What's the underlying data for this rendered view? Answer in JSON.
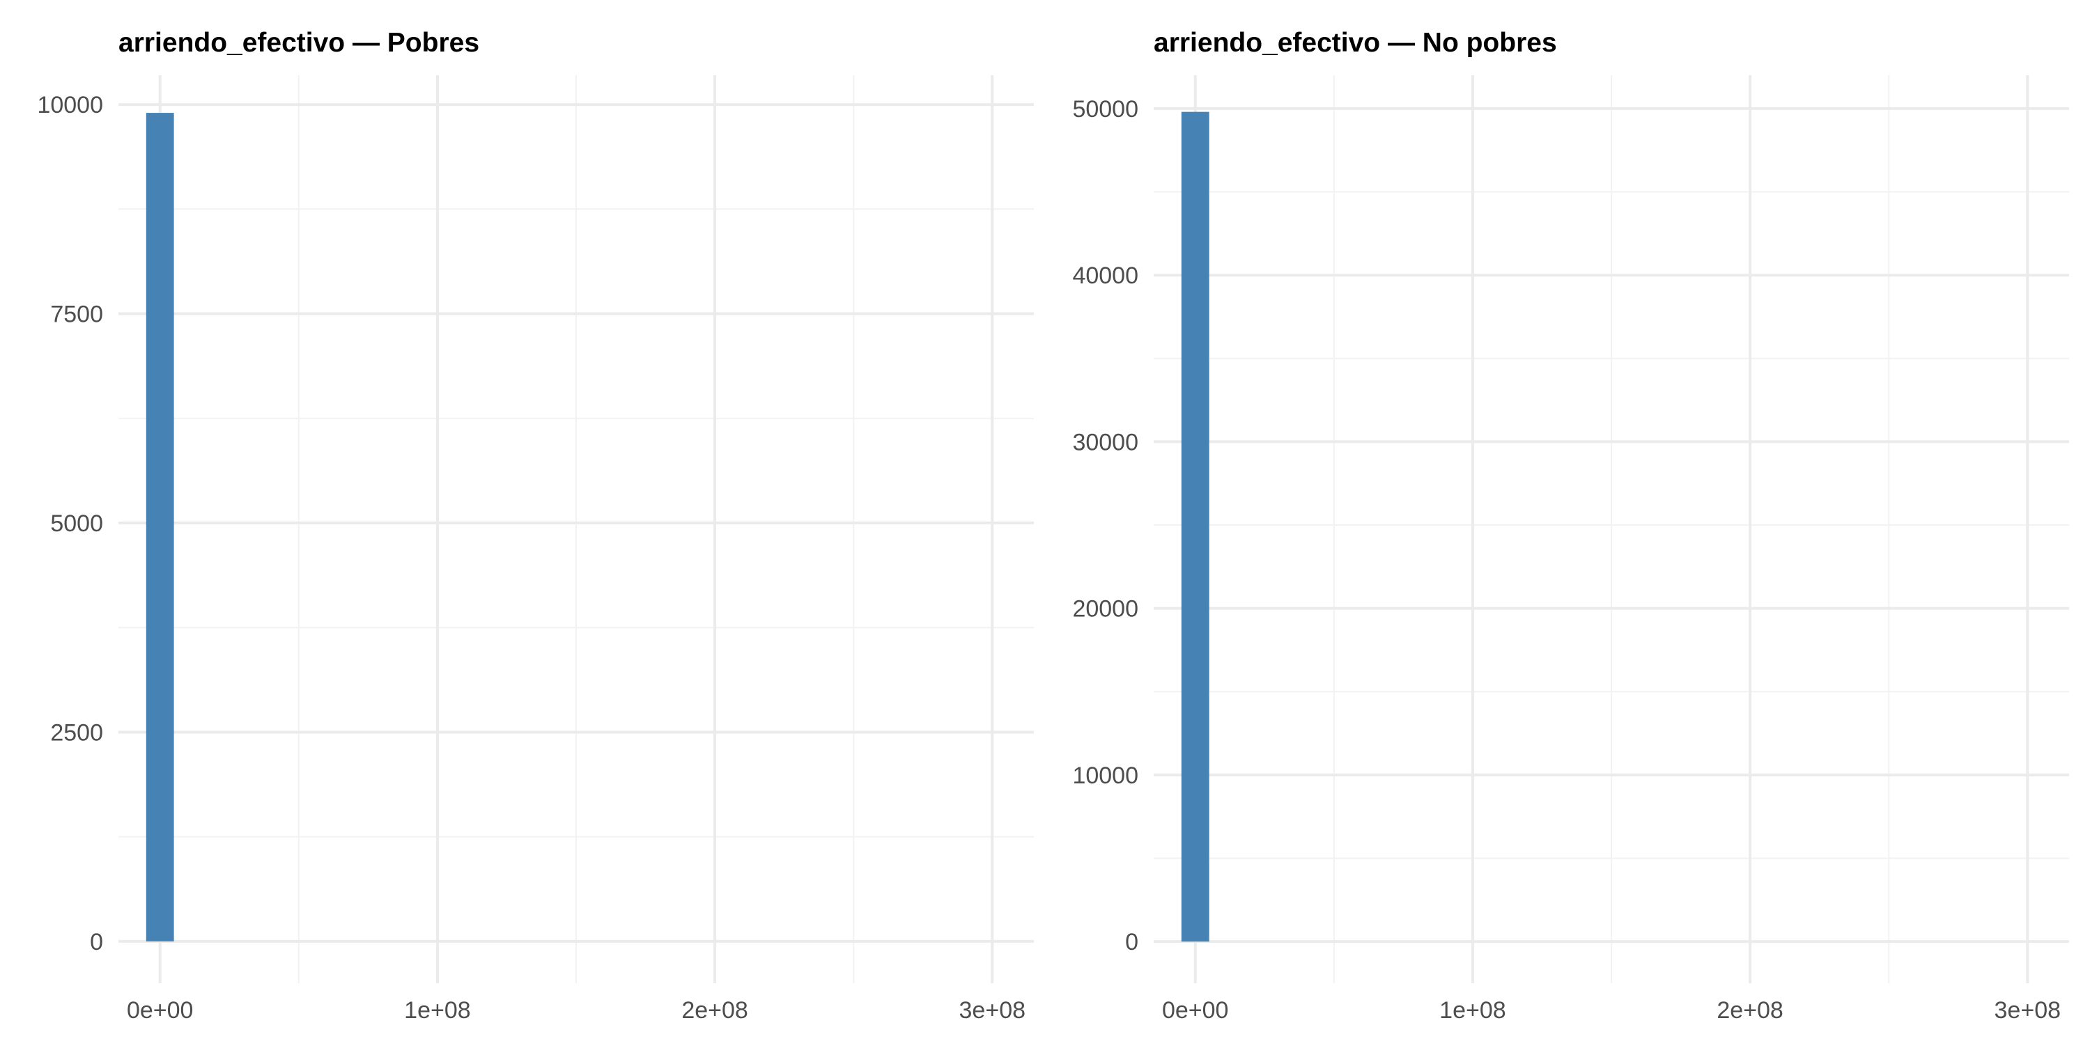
{
  "chart_data": [
    {
      "type": "bar",
      "title": "arriendo_efectivo — Pobres",
      "xlabel": "",
      "ylabel": "",
      "x_ticks": [
        {
          "value": 0,
          "label": "0e+00"
        },
        {
          "value": 100000000,
          "label": "1e+08"
        },
        {
          "value": 200000000,
          "label": "2e+08"
        },
        {
          "value": 300000000,
          "label": "3e+08"
        }
      ],
      "y_ticks": [
        {
          "value": 0,
          "label": "0"
        },
        {
          "value": 2500,
          "label": "2500"
        },
        {
          "value": 5000,
          "label": "5000"
        },
        {
          "value": 7500,
          "label": "7500"
        },
        {
          "value": 10000,
          "label": "10000"
        }
      ],
      "xlim": [
        -15000000,
        315000000
      ],
      "ylim": [
        -500,
        10350
      ],
      "grid": true,
      "bar_color": "#4682B4",
      "bins": [
        {
          "x0": -5000000,
          "x1": 5000000,
          "count": 9900
        }
      ]
    },
    {
      "type": "bar",
      "title": "arriendo_efectivo — No pobres",
      "xlabel": "",
      "ylabel": "",
      "x_ticks": [
        {
          "value": 0,
          "label": "0e+00"
        },
        {
          "value": 100000000,
          "label": "1e+08"
        },
        {
          "value": 200000000,
          "label": "2e+08"
        },
        {
          "value": 300000000,
          "label": "3e+08"
        }
      ],
      "y_ticks": [
        {
          "value": 0,
          "label": "0"
        },
        {
          "value": 10000,
          "label": "10000"
        },
        {
          "value": 20000,
          "label": "20000"
        },
        {
          "value": 30000,
          "label": "30000"
        },
        {
          "value": 40000,
          "label": "40000"
        },
        {
          "value": 50000,
          "label": "50000"
        }
      ],
      "xlim": [
        -15000000,
        315000000
      ],
      "ylim": [
        -2500,
        52000
      ],
      "grid": true,
      "bar_color": "#4682B4",
      "bins": [
        {
          "x0": -5000000,
          "x1": 5000000,
          "count": 49800
        }
      ]
    }
  ]
}
